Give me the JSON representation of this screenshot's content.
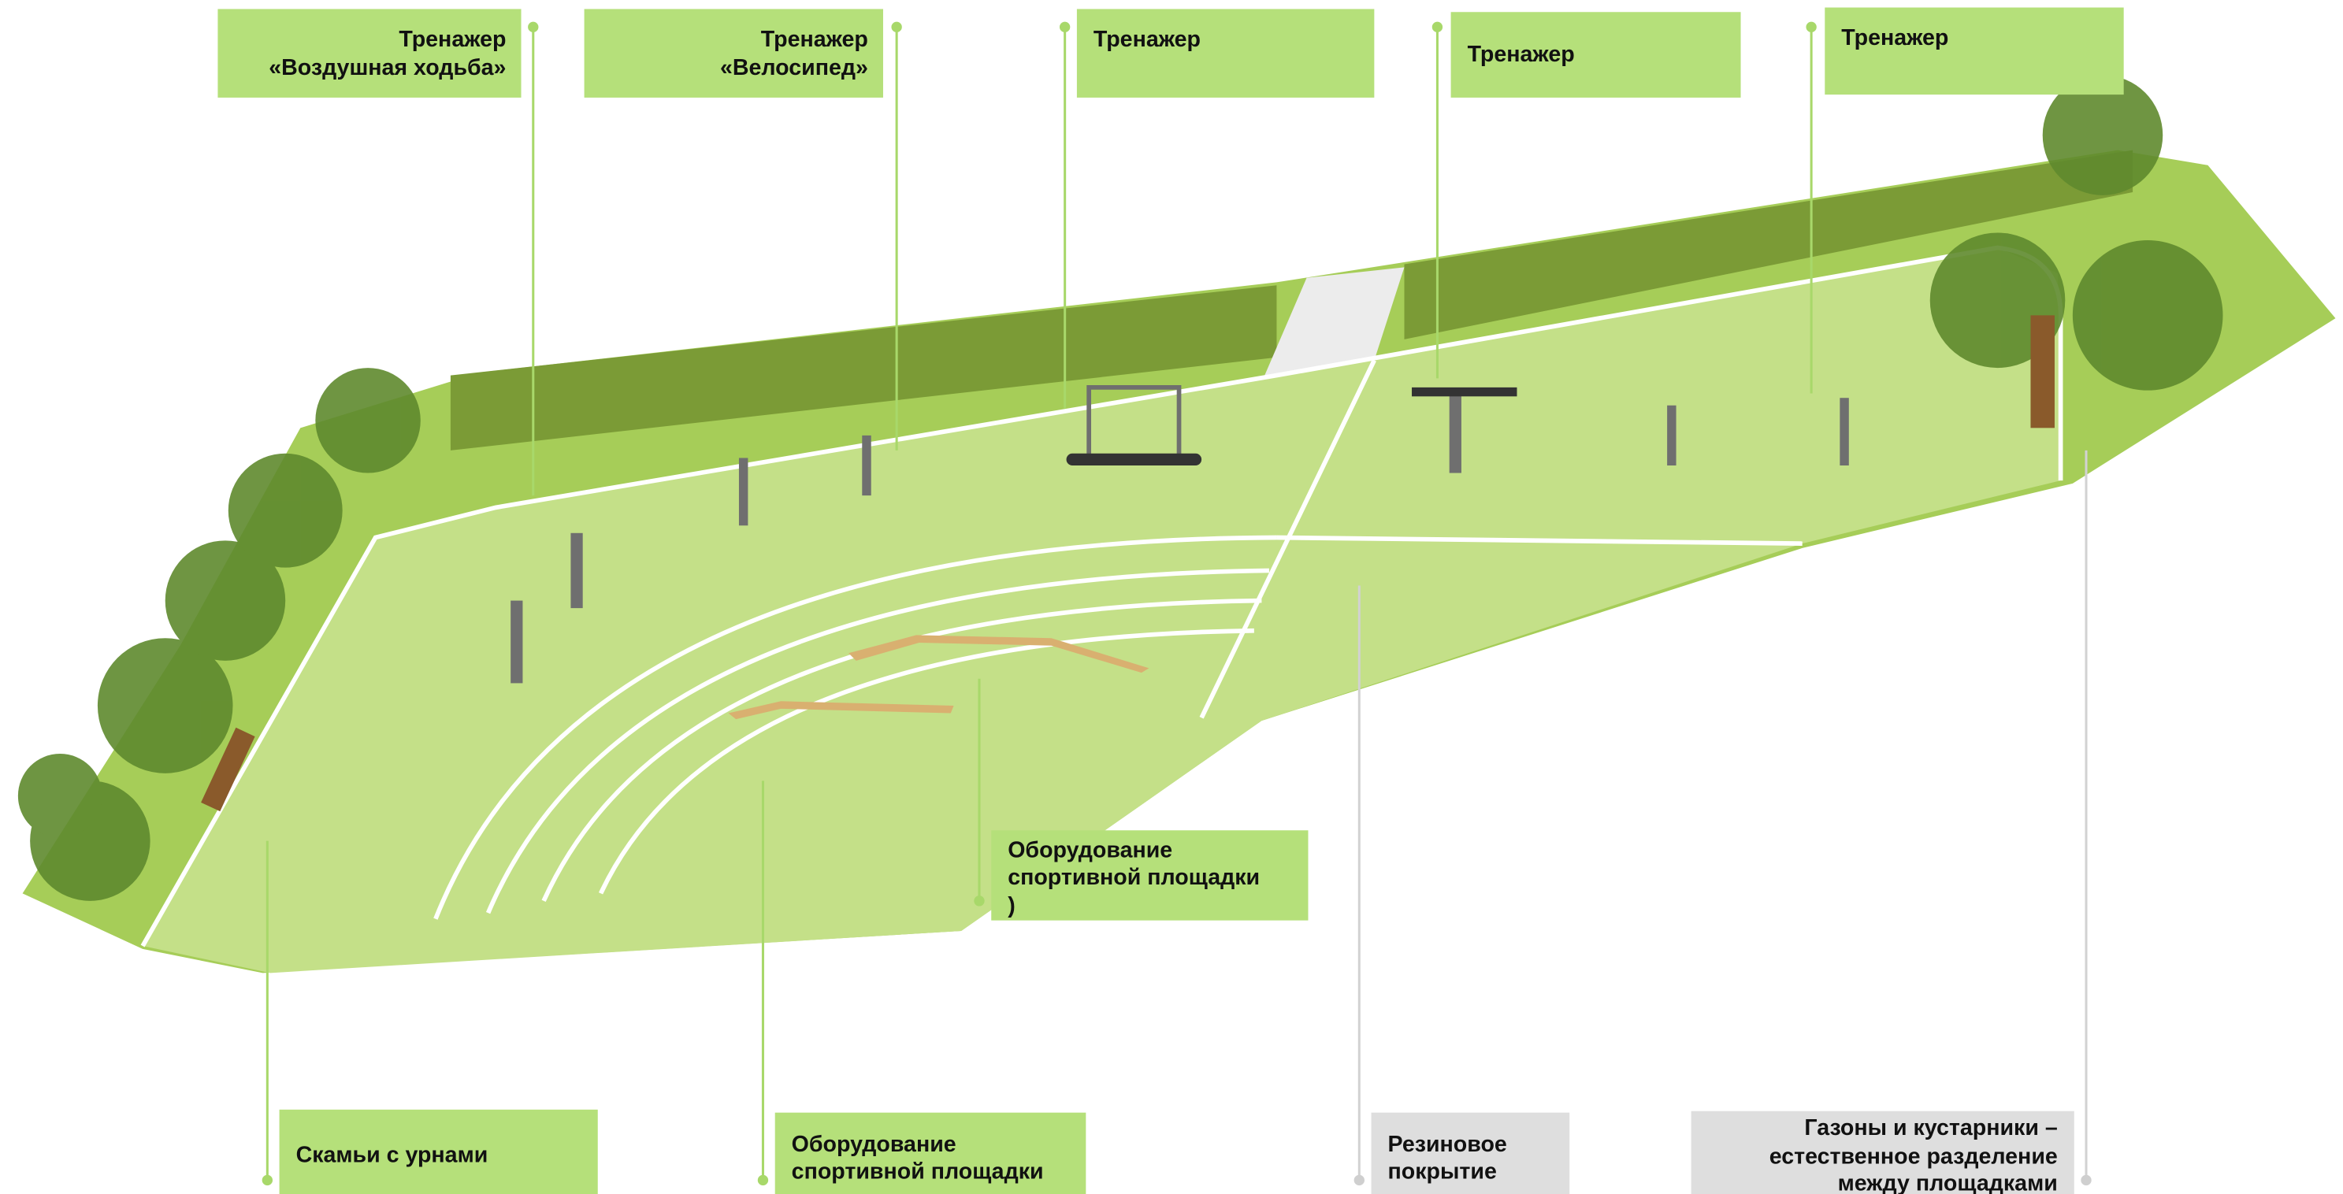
{
  "callouts": [
    {
      "lines": [
        "Тренажер",
        "«Воздушная ходьба»"
      ]
    },
    {
      "lines": [
        "Тренажер",
        "«Велосипед»"
      ]
    },
    {
      "lines": [
        "Тренажер"
      ]
    },
    {
      "lines": [
        "Тренажер"
      ]
    },
    {
      "lines": [
        "Тренажер"
      ]
    },
    {
      "lines": [
        "Оборудование",
        "спортивной площадки",
        ")"
      ]
    },
    {
      "lines": [
        "Скамьи с урнами"
      ]
    },
    {
      "lines": [
        "Оборудование",
        "спортивной площадки"
      ]
    },
    {
      "lines": [
        "Резиновое",
        "покрытие"
      ]
    },
    {
      "lines": [
        "Газоны и кустарники –",
        "естественное разделение",
        "между площадками"
      ]
    }
  ]
}
